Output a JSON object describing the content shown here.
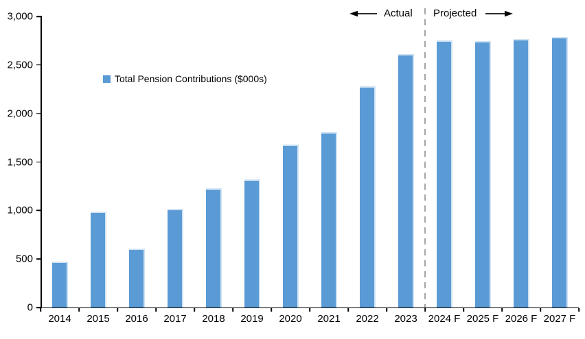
{
  "chart_data": {
    "type": "bar",
    "title": "",
    "legend": "Total Pension Contributions ($000s)",
    "categories": [
      "2014",
      "2015",
      "2016",
      "2017",
      "2018",
      "2019",
      "2020",
      "2021",
      "2022",
      "2023",
      "2024 F",
      "2025 F",
      "2026 F",
      "2027 F"
    ],
    "values": [
      470,
      990,
      610,
      1020,
      1230,
      1320,
      1680,
      1810,
      2280,
      2610,
      2750,
      2745,
      2765,
      2790
    ],
    "ylim": [
      0,
      3000
    ],
    "ytick_interval": 500,
    "ytick_labels": [
      "3,000",
      "2,500",
      "2,000",
      "1,500",
      "1,000",
      "500",
      "0"
    ],
    "xlabel": "",
    "ylabel": "",
    "grid": "off",
    "legend_position": "inside-upper-left",
    "annotations": {
      "left": "Actual",
      "right": "Projected"
    },
    "actual_count": 10,
    "colors": {
      "bar_fill": "#5B9BD5",
      "bar_edge": "#CFE2F3",
      "divider": "#A6A6A6",
      "axis": "#000000",
      "text": "#000000"
    }
  }
}
